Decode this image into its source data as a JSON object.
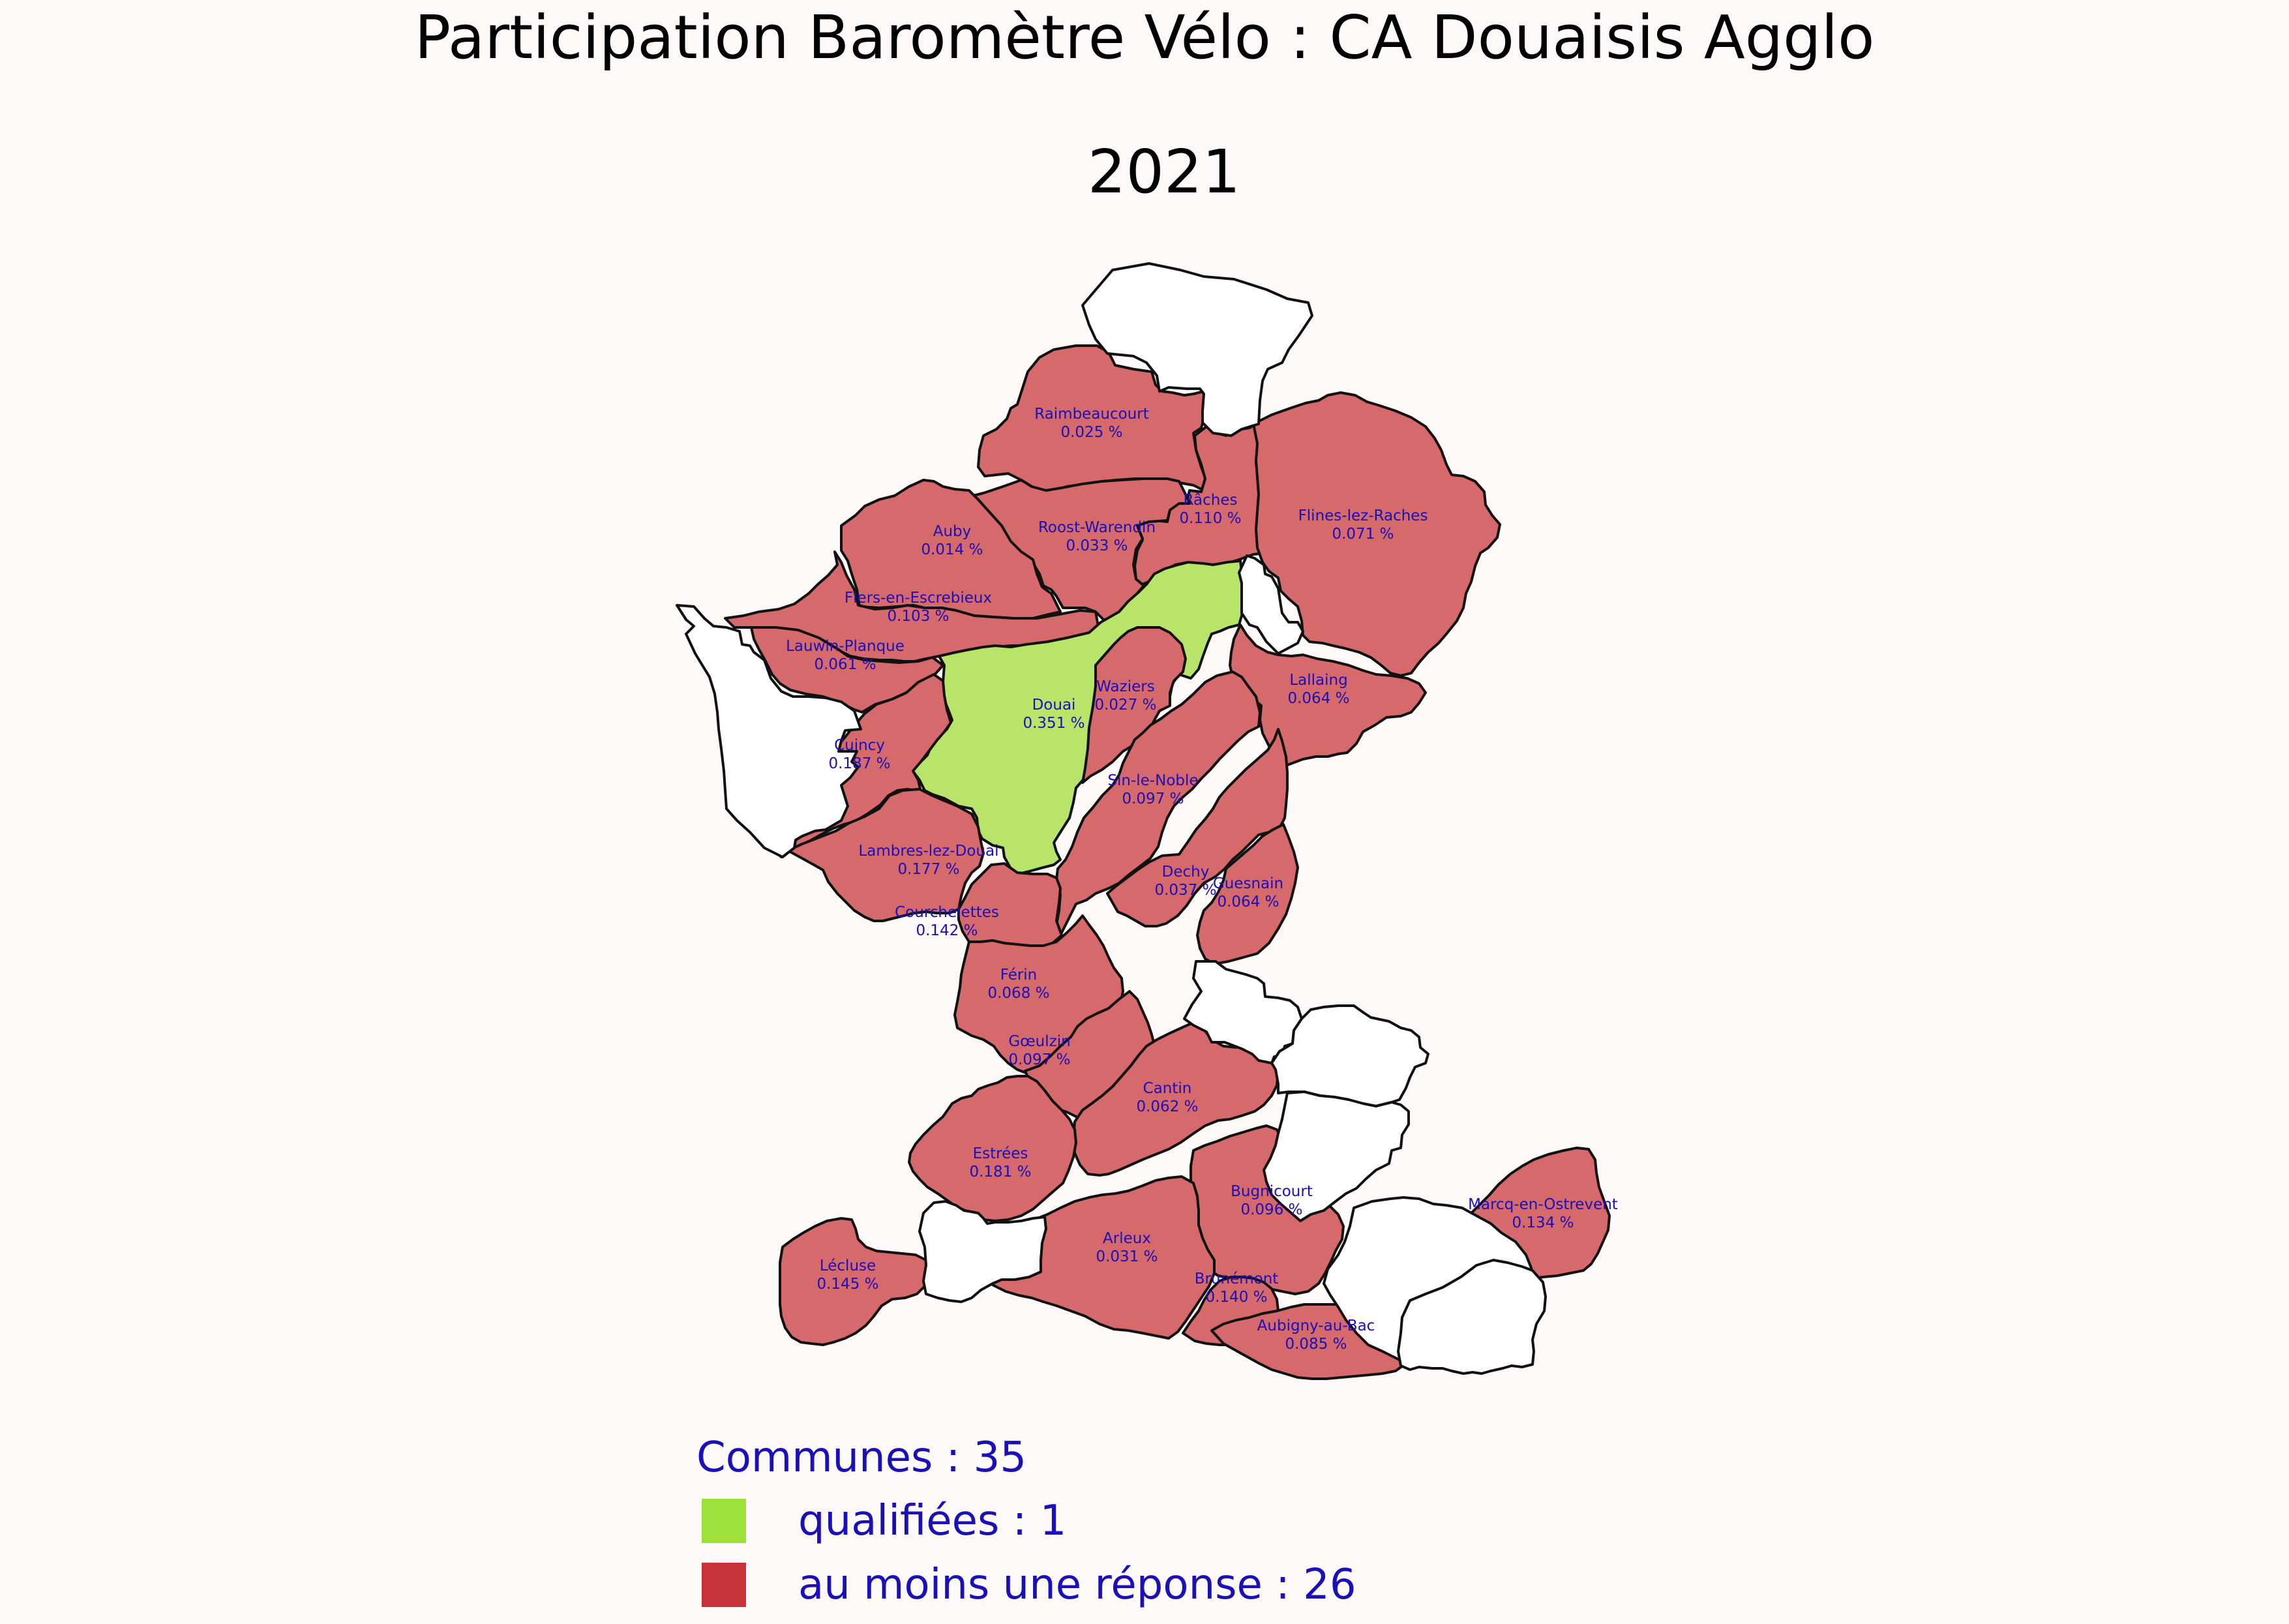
{
  "title": "Participation Baromètre Vélo : CA Douaisis Agglo",
  "year": "2021",
  "colors": {
    "qualified": "#9de03a",
    "qualified_map": "#b9e46a",
    "response": "#c8323a",
    "response_map": "#d5696b",
    "no_response": "#ffffff",
    "labels": "#1a0fb8"
  },
  "communes": [
    {
      "id": "raimbeaucourt",
      "name": "Raimbeaucourt",
      "value": "0.025 %",
      "status": "response"
    },
    {
      "id": "raches",
      "name": "Râches",
      "value": "0.110 %",
      "status": "response"
    },
    {
      "id": "roost-warendin",
      "name": "Roost-Warendin",
      "value": "0.033 %",
      "status": "response"
    },
    {
      "id": "flines-lez-raches",
      "name": "Flines-lez-Raches",
      "value": "0.071 %",
      "status": "response"
    },
    {
      "id": "auby",
      "name": "Auby",
      "value": "0.014 %",
      "status": "response"
    },
    {
      "id": "flers-en-escrebieux",
      "name": "Flers-en-Escrebieux",
      "value": "0.103 %",
      "status": "response"
    },
    {
      "id": "lauwin-planque",
      "name": "Lauwin-Planque",
      "value": "0.061 %",
      "status": "response"
    },
    {
      "id": "douai",
      "name": "Douai",
      "value": "0.351 %",
      "status": "qualified"
    },
    {
      "id": "waziers",
      "name": "Waziers",
      "value": "0.027 %",
      "status": "response"
    },
    {
      "id": "lallaing",
      "name": "Lallaing",
      "value": "0.064 %",
      "status": "response"
    },
    {
      "id": "cuincy",
      "name": "Cuincy",
      "value": "0.187 %",
      "status": "response"
    },
    {
      "id": "sin-le-noble",
      "name": "Sin-le-Noble",
      "value": "0.097 %",
      "status": "response"
    },
    {
      "id": "lambres-lez-douai",
      "name": "Lambres-lez-Douai",
      "value": "0.177 %",
      "status": "response"
    },
    {
      "id": "dechy",
      "name": "Dechy",
      "value": "0.037 %",
      "status": "response"
    },
    {
      "id": "guesnain",
      "name": "Guesnain",
      "value": "0.064 %",
      "status": "response"
    },
    {
      "id": "courchelettes",
      "name": "Courchelettes",
      "value": "0.142 %",
      "status": "response"
    },
    {
      "id": "ferin",
      "name": "Férin",
      "value": "0.068 %",
      "status": "response"
    },
    {
      "id": "goeulzin",
      "name": "Gœulzin",
      "value": "0.097 %",
      "status": "response"
    },
    {
      "id": "cantin",
      "name": "Cantin",
      "value": "0.062 %",
      "status": "response"
    },
    {
      "id": "estrees",
      "name": "Estrées",
      "value": "0.181 %",
      "status": "response"
    },
    {
      "id": "bugnicourt",
      "name": "Bugnicourt",
      "value": "0.096 %",
      "status": "response"
    },
    {
      "id": "marcq-en-ostrevent",
      "name": "Marcq-en-Ostrevent",
      "value": "0.134 %",
      "status": "response"
    },
    {
      "id": "arleux",
      "name": "Arleux",
      "value": "0.031 %",
      "status": "response"
    },
    {
      "id": "lecluse",
      "name": "Lécluse",
      "value": "0.145 %",
      "status": "response"
    },
    {
      "id": "brunemont",
      "name": "Brunémont",
      "value": "0.140 %",
      "status": "response"
    },
    {
      "id": "aubigny-au-bac",
      "name": "Aubigny-au-Bac",
      "value": "0.085 %",
      "status": "response"
    },
    {
      "id": "north-blank",
      "name": "",
      "value": "",
      "status": "none"
    },
    {
      "id": "west-blank",
      "name": "",
      "value": "",
      "status": "none"
    },
    {
      "id": "center-north-blank",
      "name": "",
      "value": "",
      "status": "none"
    },
    {
      "id": "east-blank-1",
      "name": "",
      "value": "",
      "status": "none"
    },
    {
      "id": "east-blank-2",
      "name": "",
      "value": "",
      "status": "none"
    },
    {
      "id": "east-blank-3",
      "name": "",
      "value": "",
      "status": "none"
    },
    {
      "id": "southeast-blank",
      "name": "",
      "value": "",
      "status": "none"
    },
    {
      "id": "south-blank-1",
      "name": "",
      "value": "",
      "status": "none"
    },
    {
      "id": "south-blank-2",
      "name": "",
      "value": "",
      "status": "none"
    }
  ],
  "legend": {
    "heading": "Communes : 35",
    "items": [
      {
        "label": "qualifiées : 1",
        "color": "#9de03a"
      },
      {
        "label": "au moins une réponse : 26",
        "color": "#c8323a"
      }
    ]
  }
}
